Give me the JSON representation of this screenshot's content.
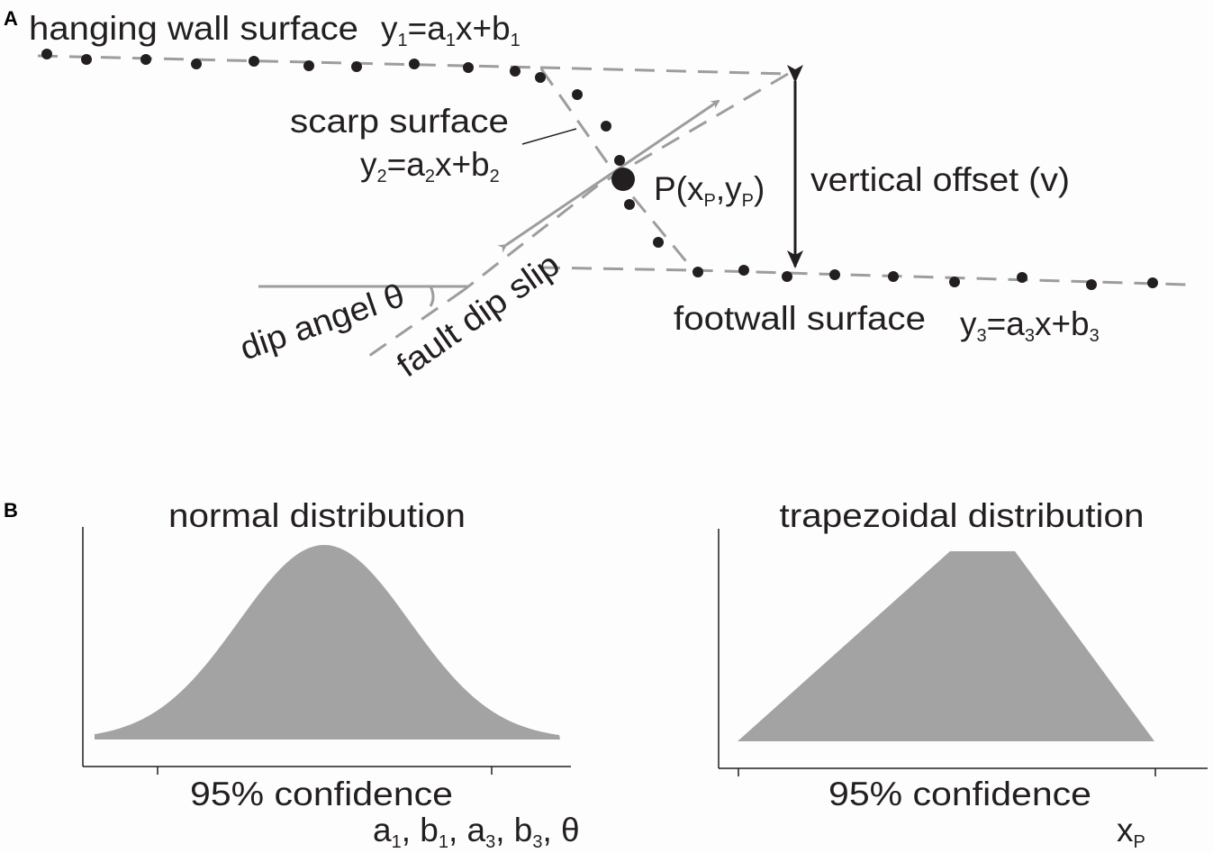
{
  "panel_a": {
    "label": "A",
    "hanging_wall": {
      "label": "hanging wall surface",
      "eq_y": "y",
      "eq_sub1": "1",
      "eq_mid": "=a",
      "eq_sub2": "1",
      "eq_mid2": "x+b",
      "eq_sub3": "1"
    },
    "scarp": {
      "label": "scarp surface",
      "eq_y": "y",
      "eq_sub1": "2",
      "eq_mid": "=a",
      "eq_sub2": "2",
      "eq_mid2": "x+b",
      "eq_sub3": "2"
    },
    "footwall": {
      "label": "footwall surface",
      "eq_y": "y",
      "eq_sub1": "3",
      "eq_mid": "=a",
      "eq_sub2": "3",
      "eq_mid2": "x+b",
      "eq_sub3": "3"
    },
    "point": {
      "p": "P(x",
      "sub1": "P",
      "mid": ",y",
      "sub2": "P",
      "end": ")"
    },
    "vertical_offset": "vertical offset (v)",
    "dip_angle": "dip angel θ",
    "fault_dip_slip": "fault dip slip"
  },
  "panel_b": {
    "label": "B",
    "normal": {
      "title": "normal distribution",
      "confidence": "95% confidence",
      "params": {
        "a": "a",
        "s1": "1",
        "b": ", b",
        "s2": "1",
        "c": ", a",
        "s3": "3",
        "d": ",  b",
        "s4": "3",
        "e": ", θ"
      }
    },
    "trapezoid": {
      "title": "trapezoidal distribution",
      "confidence": "95% confidence",
      "param": {
        "x": "x",
        "sub": "P"
      }
    }
  },
  "colors": {
    "fill_grey": "#a3a3a3",
    "line_grey": "#9d9d9d",
    "ink": "#231f20"
  }
}
